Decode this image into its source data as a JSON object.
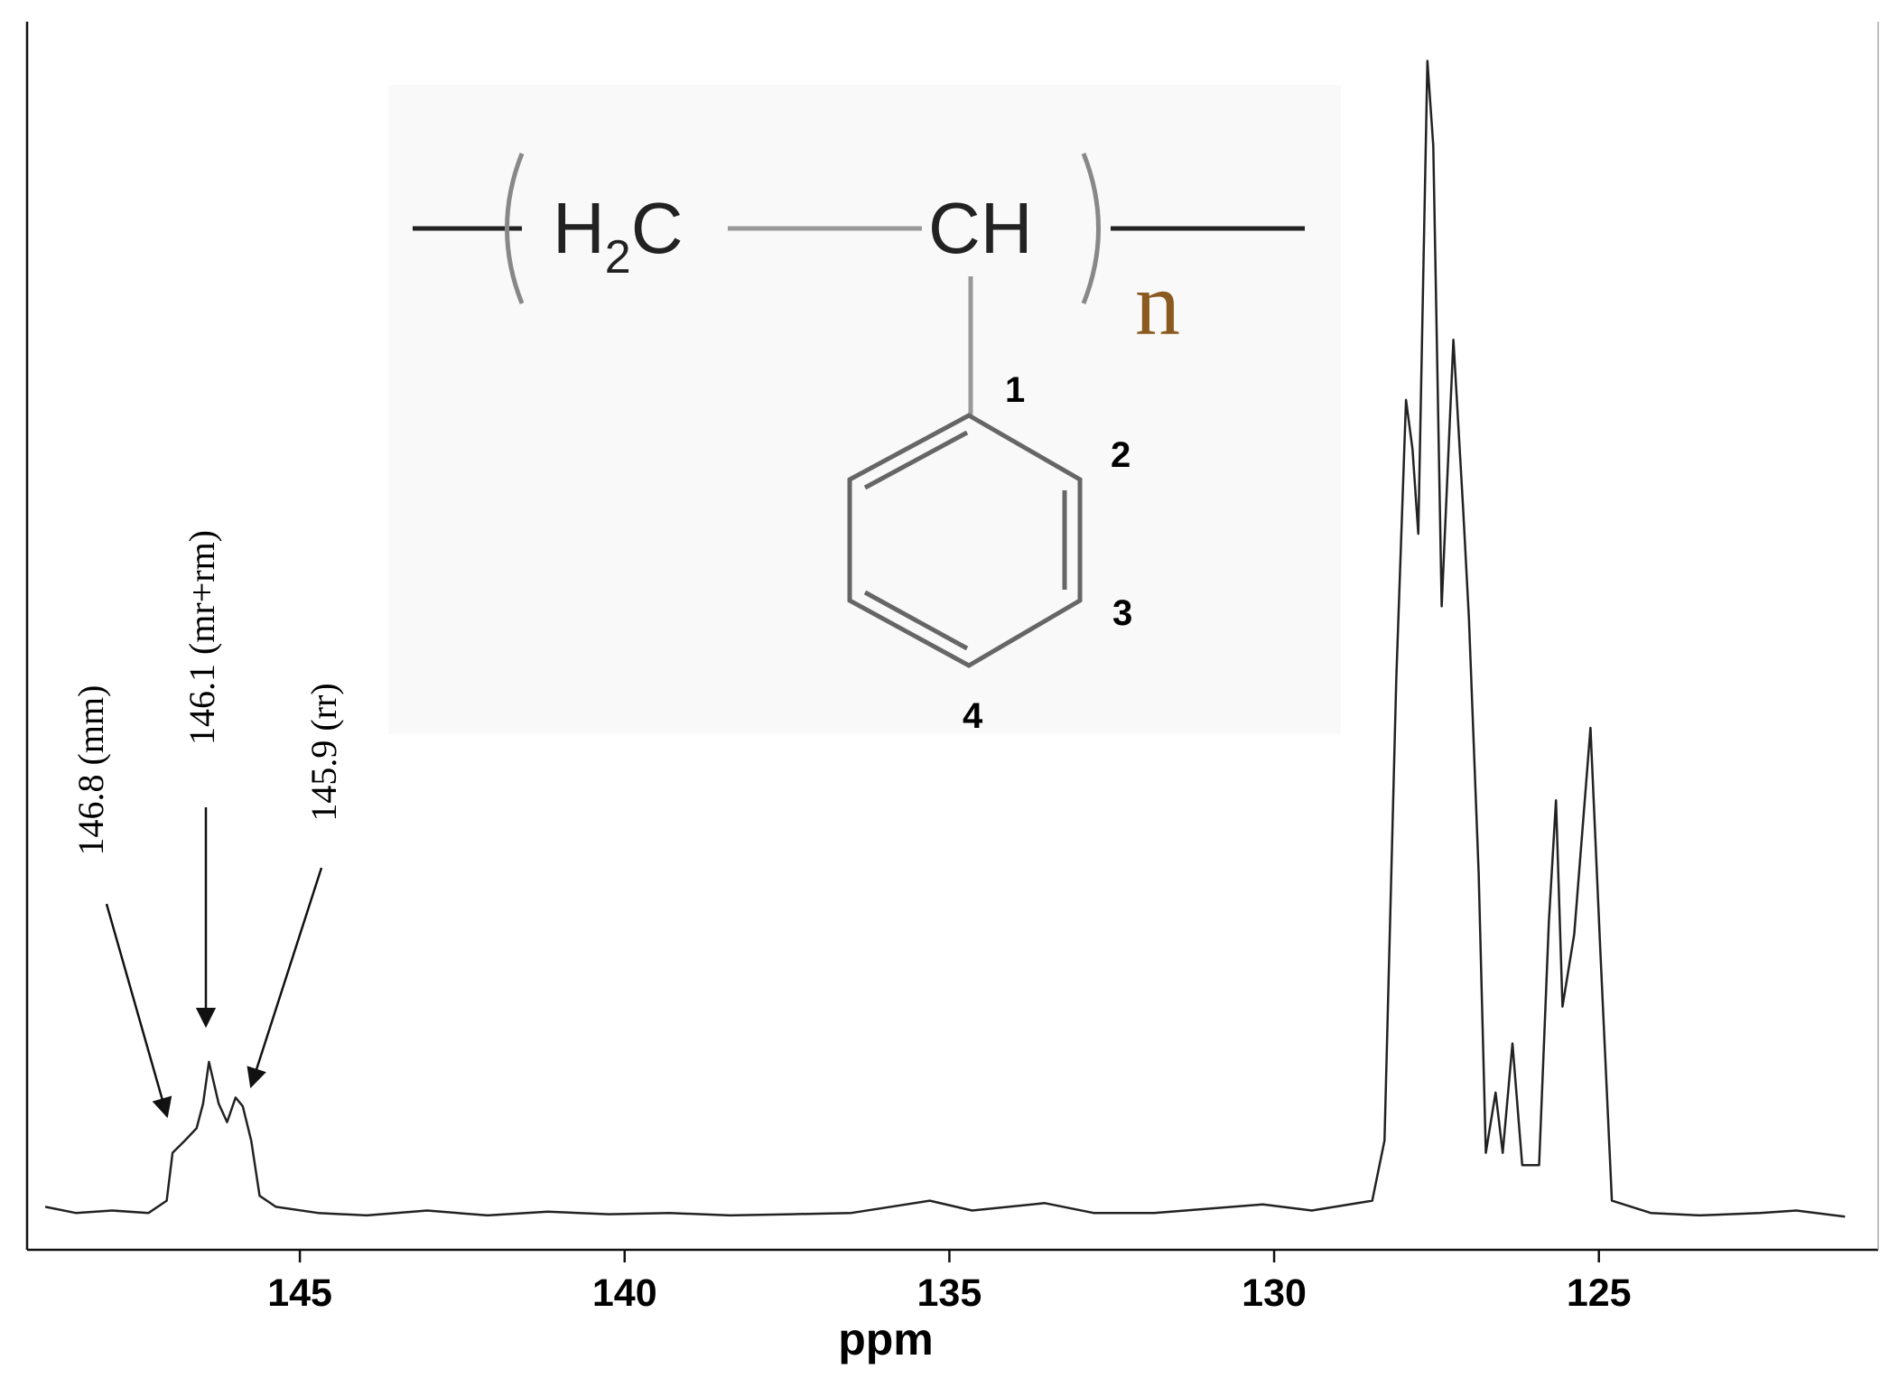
{
  "chart_data": {
    "type": "line",
    "x_label": "ppm",
    "xlim": [
      149.2,
      120.7
    ],
    "xticks": [
      145,
      140,
      135,
      130,
      125
    ],
    "ylim": [
      0,
      100
    ],
    "color": "#222222",
    "x": [
      148.92,
      148.45,
      147.89,
      147.33,
      147.05,
      146.96,
      146.77,
      146.59,
      146.49,
      146.4,
      146.25,
      146.12,
      145.99,
      145.88,
      145.75,
      145.62,
      145.37,
      144.72,
      143.97,
      143.04,
      142.11,
      141.18,
      140.24,
      139.31,
      138.38,
      137.44,
      136.51,
      135.3,
      134.65,
      133.53,
      132.78,
      131.85,
      130.17,
      129.42,
      128.49,
      128.3,
      128.12,
      127.97,
      127.87,
      127.78,
      127.64,
      127.55,
      127.42,
      127.24,
      127.09,
      127.0,
      126.85,
      126.74,
      126.59,
      126.48,
      126.33,
      126.18,
      125.92,
      125.77,
      125.66,
      125.56,
      125.38,
      125.13,
      124.98,
      124.8,
      124.2,
      123.45,
      122.52,
      121.96,
      121.21
    ],
    "values": [
      3.5,
      3.0,
      3.2,
      3.0,
      4.0,
      7.9,
      8.9,
      9.9,
      11.9,
      15.3,
      11.9,
      10.4,
      12.4,
      11.7,
      8.9,
      4.4,
      3.5,
      3.0,
      2.8,
      3.2,
      2.8,
      3.1,
      2.9,
      3.0,
      2.8,
      2.9,
      3.0,
      4.0,
      3.2,
      3.8,
      3.0,
      3.0,
      3.7,
      3.2,
      4.0,
      8.9,
      46.4,
      69.2,
      65.2,
      58.3,
      96.8,
      89.9,
      52.4,
      74.1,
      60.3,
      51.4,
      30.6,
      7.9,
      12.8,
      7.9,
      16.8,
      6.9,
      6.9,
      26.7,
      36.6,
      19.8,
      25.7,
      42.5,
      24.7,
      4.0,
      3.0,
      2.8,
      3.0,
      3.2,
      2.7
    ],
    "annotations": [
      "146.8 (mm)",
      "146.1 (mr+rm)",
      "145.9 (rr)"
    ],
    "structure": {
      "left_group": [
        "H",
        "2",
        "C"
      ],
      "right_group": "CH",
      "repeat": "n",
      "positions": [
        "1",
        "2",
        "3",
        "4"
      ]
    }
  }
}
